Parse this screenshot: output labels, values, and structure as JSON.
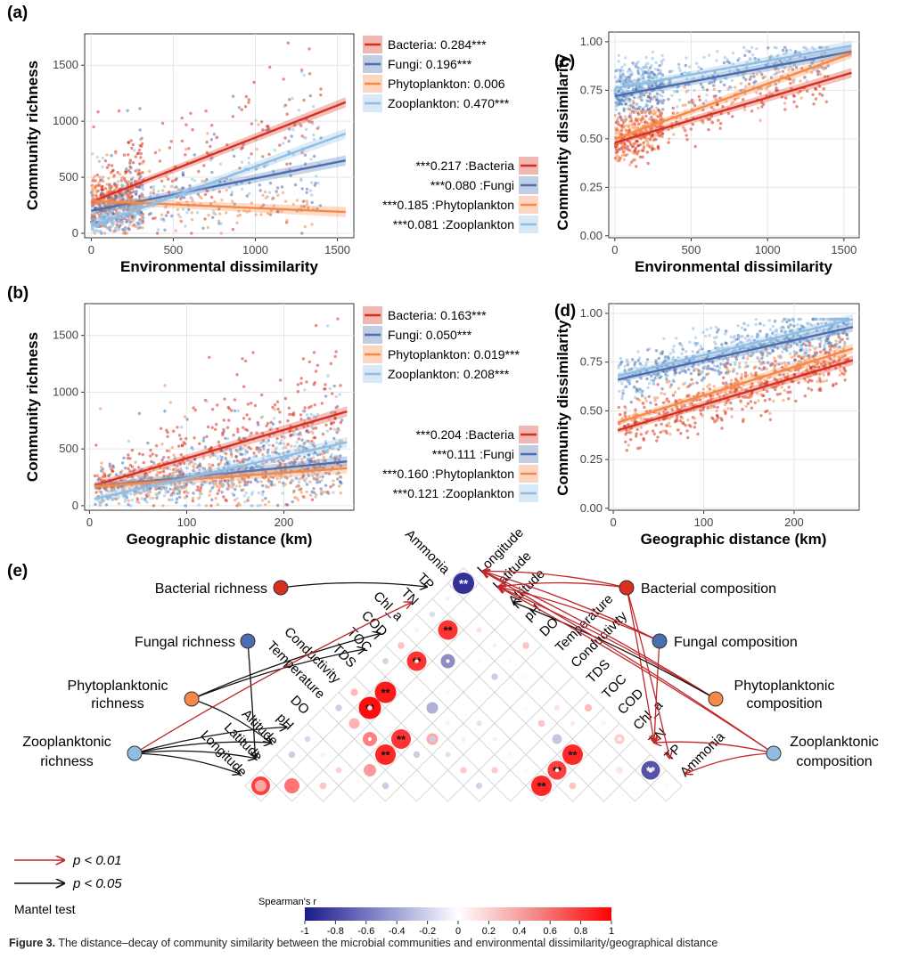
{
  "colors": {
    "bacteria": "#d7301f",
    "fungi": "#4a6fb0",
    "phytoplankton": "#f6894a",
    "zooplankton": "#8fbde3",
    "sig01": "#c0262a",
    "sig05": "#111111"
  },
  "panels": {
    "a": {
      "label": "(a)",
      "xlabel": "Environmental dissimilarity",
      "ylabel": "Community richness",
      "legend_r2": [
        "Bacteria: 0.284***",
        "Fungi: 0.196***",
        "Phytoplankton: 0.006",
        "Zooplankton: 0.470***"
      ],
      "legend_mantel": [
        "***0.217 :Bacteria",
        "***0.080 :Fungi",
        "***0.185 :Phytoplankton",
        "***0.081 :Zooplankton"
      ]
    },
    "b": {
      "label": "(b)",
      "xlabel": "Geographic distance (km)",
      "ylabel": "Community richness",
      "legend_r2": [
        "Bacteria: 0.163***",
        "Fungi: 0.050***",
        "Phytoplankton: 0.019***",
        "Zooplankton: 0.208***"
      ],
      "legend_mantel": [
        "***0.204 :Bacteria",
        "***0.111 :Fungi",
        "***0.160 :Phytoplankton",
        "***0.121 :Zooplankton"
      ]
    },
    "c": {
      "label": "(c)",
      "xlabel": "Environmental dissimilarity",
      "ylabel": "Community dissimilarity"
    },
    "d": {
      "label": "(d)",
      "xlabel": "Geographic distance (km)",
      "ylabel": "Community dissimilarity"
    },
    "e": {
      "label": "(e)",
      "legend_p01": "p < 0.01",
      "legend_p05": "p < 0.05",
      "mantel_label": "Mantel test",
      "colorbar_title": "Spearman's r",
      "colorbar_ticks": [
        "-1",
        "-0.8",
        "-0.6",
        "-0.4",
        "-0.2",
        "0",
        "0.2",
        "0.4",
        "0.6",
        "0.8",
        "1"
      ]
    }
  },
  "chart_data": [
    {
      "type": "scatter",
      "panel": "a",
      "title": "",
      "xlabel": "Environmental dissimilarity",
      "ylabel": "Community richness",
      "xlim": [
        -40,
        1600
      ],
      "ylim": [
        -40,
        1780
      ],
      "xticks": [
        0,
        500,
        1000,
        1500
      ],
      "yticks": [
        0,
        500,
        1000,
        1500
      ],
      "series": [
        {
          "name": "Bacteria",
          "r2": "0.284***",
          "fit": [
            [
              0,
              280
            ],
            [
              1550,
              1170
            ]
          ]
        },
        {
          "name": "Fungi",
          "r2": "0.196***",
          "fit": [
            [
              0,
              200
            ],
            [
              1550,
              650
            ]
          ]
        },
        {
          "name": "Phytoplankton",
          "r2": "0.006",
          "fit": [
            [
              0,
              290
            ],
            [
              1550,
              190
            ]
          ]
        },
        {
          "name": "Zooplankton",
          "r2": "0.470***",
          "fit": [
            [
              0,
              60
            ],
            [
              1550,
              890
            ]
          ]
        }
      ]
    },
    {
      "type": "scatter",
      "panel": "b",
      "title": "",
      "xlabel": "Geographic distance (km)",
      "ylabel": "Community richness",
      "xlim": [
        -5,
        272
      ],
      "ylim": [
        -40,
        1780
      ],
      "xticks": [
        0,
        100,
        200
      ],
      "yticks": [
        0,
        500,
        1000,
        1500
      ],
      "series": [
        {
          "name": "Bacteria",
          "r2": "0.163***",
          "fit": [
            [
              5,
              180
            ],
            [
              265,
              830
            ]
          ]
        },
        {
          "name": "Fungi",
          "r2": "0.050***",
          "fit": [
            [
              5,
              170
            ],
            [
              265,
              390
            ]
          ]
        },
        {
          "name": "Phytoplankton",
          "r2": "0.019***",
          "fit": [
            [
              5,
              170
            ],
            [
              265,
              330
            ]
          ]
        },
        {
          "name": "Zooplankton",
          "r2": "0.208***",
          "fit": [
            [
              5,
              60
            ],
            [
              265,
              560
            ]
          ]
        }
      ]
    },
    {
      "type": "scatter",
      "panel": "c",
      "title": "",
      "xlabel": "Environmental dissimilarity",
      "ylabel": "Community dissimilarity",
      "xlim": [
        -40,
        1600
      ],
      "ylim": [
        -0.01,
        1.05
      ],
      "xticks": [
        0,
        500,
        1000,
        1500
      ],
      "yticks": [
        "0.00",
        "0.25",
        "0.50",
        "0.75",
        "1.00"
      ],
      "series": [
        {
          "name": "Bacteria",
          "fit": [
            [
              0,
              0.48
            ],
            [
              1550,
              0.84
            ]
          ]
        },
        {
          "name": "Fungi",
          "fit": [
            [
              0,
              0.72
            ],
            [
              1550,
              0.95
            ]
          ]
        },
        {
          "name": "Phytoplankton",
          "fit": [
            [
              0,
              0.5
            ],
            [
              1550,
              0.94
            ]
          ]
        },
        {
          "name": "Zooplankton",
          "fit": [
            [
              0,
              0.76
            ],
            [
              1550,
              0.98
            ]
          ]
        }
      ]
    },
    {
      "type": "scatter",
      "panel": "d",
      "title": "",
      "xlabel": "Geographic distance (km)",
      "ylabel": "Community dissimilarity",
      "xlim": [
        -5,
        272
      ],
      "ylim": [
        -0.01,
        1.05
      ],
      "xticks": [
        0,
        100,
        200
      ],
      "yticks": [
        "0.00",
        "0.25",
        "0.50",
        "0.75",
        "1.00"
      ],
      "series": [
        {
          "name": "Bacteria",
          "fit": [
            [
              5,
              0.4
            ],
            [
              265,
              0.76
            ]
          ]
        },
        {
          "name": "Fungi",
          "fit": [
            [
              5,
              0.66
            ],
            [
              265,
              0.93
            ]
          ]
        },
        {
          "name": "Phytoplankton",
          "fit": [
            [
              5,
              0.44
            ],
            [
              265,
              0.82
            ]
          ]
        },
        {
          "name": "Zooplankton",
          "fit": [
            [
              5,
              0.68
            ],
            [
              265,
              0.97
            ]
          ]
        }
      ]
    },
    {
      "type": "heatmap",
      "panel": "e",
      "title": "Spearman's r",
      "variables": [
        "Ammonia",
        "TP",
        "TN",
        "Chl_a",
        "COD",
        "TOC",
        "TDS",
        "Conductivity",
        "Temperature",
        "DO",
        "pH",
        "Altitude",
        "Latitude",
        "Longitude"
      ],
      "right_variables": [
        "Longitude",
        "Latitude",
        "Altitude",
        "pH",
        "DO",
        "Temperature",
        "Conductivity",
        "TDS",
        "TOC",
        "COD",
        "Chl_a",
        "TN",
        "TP",
        "Ammonia"
      ],
      "range": [
        -1,
        1
      ],
      "cells": [
        {
          "a": "Ammonia",
          "b": "TP",
          "r": -0.75,
          "sig": "**"
        },
        {
          "a": "Ammonia",
          "b": "Chl_a",
          "r": 0.25,
          "sig": ""
        },
        {
          "a": "TP",
          "b": "TN",
          "r": 0.1,
          "sig": ""
        },
        {
          "a": "Chl_a",
          "b": "COD",
          "r": -0.75,
          "sig": "**"
        },
        {
          "a": "TN",
          "b": "COD",
          "r": 0.45,
          "sig": ""
        },
        {
          "a": "TN",
          "b": "TOC",
          "r": -0.25,
          "sig": ""
        },
        {
          "a": "Longitude",
          "b": "Altitude",
          "r": 0.85,
          "sig": "**"
        },
        {
          "a": "Latitude",
          "b": "pH",
          "r": 0.8,
          "sig": "**"
        },
        {
          "a": "Latitude",
          "b": "DO",
          "r": 0.55,
          "sig": ""
        },
        {
          "a": "pH",
          "b": "DO",
          "r": 0.75,
          "sig": "**"
        },
        {
          "a": "DO",
          "b": "Temperature",
          "r": 0.85,
          "sig": "**"
        },
        {
          "a": "Temperature",
          "b": "TDS",
          "r": 0.75,
          "sig": "**"
        },
        {
          "a": "Conductivity",
          "b": "TDS",
          "r": 0.85,
          "sig": "**"
        },
        {
          "a": "Longitude",
          "b": "Ammonia",
          "r": 0.4,
          "sig": ""
        },
        {
          "a": "Ammonia",
          "b": "Longitude",
          "r": -0.9,
          "sig": "**"
        },
        {
          "a": "TN",
          "b": "Latitude",
          "r": 0.8,
          "sig": "**"
        },
        {
          "a": "COD",
          "b": "Latitude",
          "r": 0.8,
          "sig": "**"
        },
        {
          "a": "TDS",
          "b": "Latitude",
          "r": 0.9,
          "sig": "**"
        },
        {
          "a": "Conductivity",
          "b": "Latitude",
          "r": 0.95,
          "sig": "**"
        },
        {
          "a": "Temperature",
          "b": "Altitude",
          "r": 0.5,
          "sig": ""
        },
        {
          "a": "Chl_a",
          "b": "Altitude",
          "r": -0.5,
          "sig": ""
        },
        {
          "a": "TOC",
          "b": "pH",
          "r": -0.35,
          "sig": ""
        },
        {
          "a": "TDS",
          "b": "DO",
          "r": 0.35,
          "sig": ""
        },
        {
          "a": "Ammonia",
          "b": "Chl_a",
          "r": 0.2,
          "sig": ""
        },
        {
          "a": "Temperature",
          "b": "Latitude",
          "r": 0.3,
          "sig": ""
        },
        {
          "a": "Longitude",
          "b": "TN",
          "r": 0.35,
          "sig": ""
        }
      ],
      "mantel_links": [
        {
          "from": "Bacterial richness",
          "to": "TP",
          "p": "< 0.05"
        },
        {
          "from": "Fungal richness",
          "to": "Latitude",
          "p": "< 0.05"
        },
        {
          "from": "Phytoplanktonic richness",
          "to": "COD",
          "p": "< 0.05"
        },
        {
          "from": "Phytoplanktonic richness",
          "to": "TOC",
          "p": "< 0.05"
        },
        {
          "from": "Phytoplanktonic richness",
          "to": "Altitude",
          "p": "< 0.05"
        },
        {
          "from": "Zooplanktonic richness",
          "to": "TN",
          "p": "< 0.01"
        },
        {
          "from": "Zooplanktonic richness",
          "to": "pH",
          "p": "< 0.05"
        },
        {
          "from": "Zooplanktonic richness",
          "to": "Latitude",
          "p": "< 0.05"
        },
        {
          "from": "Zooplanktonic richness",
          "to": "Altitude",
          "p": "< 0.05"
        },
        {
          "from": "Zooplanktonic richness",
          "to": "Longitude",
          "p": "< 0.05"
        },
        {
          "from": "Bacterial composition",
          "to": "Longitude",
          "p": "< 0.01"
        },
        {
          "from": "Bacterial composition",
          "to": "Latitude",
          "p": "< 0.01"
        },
        {
          "from": "Bacterial composition",
          "to": "TN",
          "p": "< 0.01"
        },
        {
          "from": "Bacterial composition",
          "to": "TP",
          "p": "< 0.01"
        },
        {
          "from": "Fungal composition",
          "to": "Longitude",
          "p": "< 0.01"
        },
        {
          "from": "Fungal composition",
          "to": "Latitude",
          "p": "< 0.01"
        },
        {
          "from": "Fungal composition",
          "to": "TN",
          "p": "< 0.01"
        },
        {
          "from": "Phytoplanktonic composition",
          "to": "Longitude",
          "p": "< 0.01"
        },
        {
          "from": "Phytoplanktonic composition",
          "to": "Latitude",
          "p": "< 0.01"
        },
        {
          "from": "Phytoplanktonic composition",
          "to": "Altitude",
          "p": "< 0.05"
        },
        {
          "from": "Zooplanktonic composition",
          "to": "Longitude",
          "p": "< 0.01"
        },
        {
          "from": "Zooplanktonic composition",
          "to": "Latitude",
          "p": "< 0.01"
        },
        {
          "from": "Zooplanktonic composition",
          "to": "TN",
          "p": "< 0.01"
        },
        {
          "from": "Zooplanktonic composition",
          "to": "Ammonia",
          "p": "< 0.01"
        }
      ]
    }
  ],
  "nodes": {
    "bacterial_richness": "Bacterial richness",
    "fungal_richness": "Fungal richness",
    "phyto_richness_1": "Phytoplanktonic",
    "phyto_richness_2": "richness",
    "zoo_richness_1": "Zooplanktonic",
    "zoo_richness_2": "richness",
    "bacterial_composition": "Bacterial composition",
    "fungal_composition": "Fungal composition",
    "phyto_composition_1": "Phytoplanktonic",
    "phyto_composition_2": "composition",
    "zoo_composition_1": "Zooplanktonic",
    "zoo_composition_2": "composition"
  },
  "caption": {
    "label": "Figure 3.",
    "text": "The distance–decay of community similarity between the microbial communities and environmental dissimilarity/geographical distance"
  }
}
